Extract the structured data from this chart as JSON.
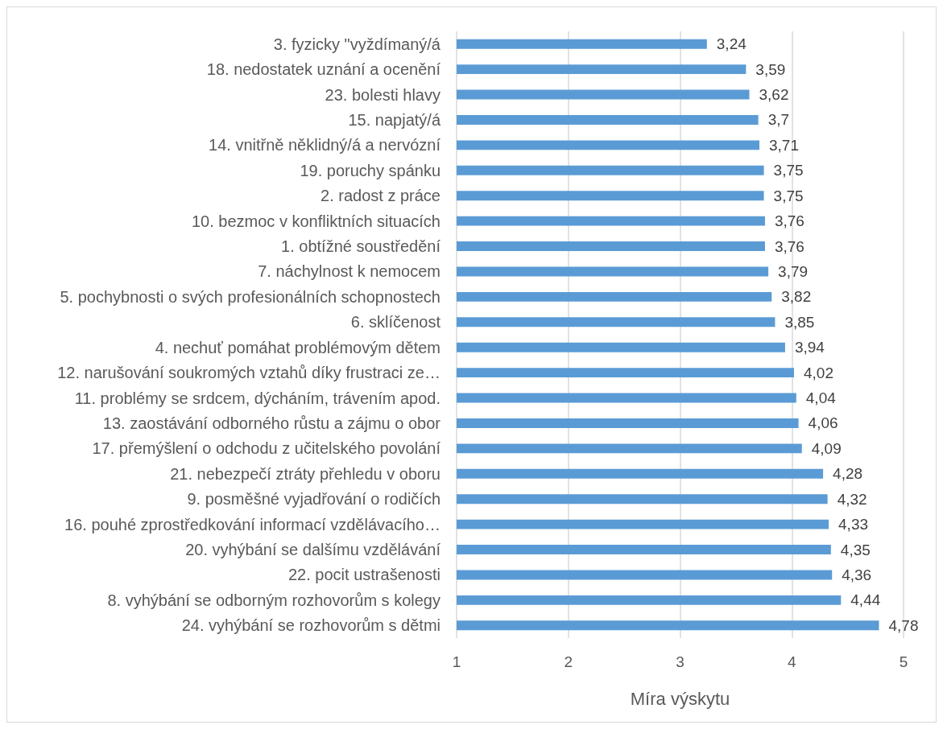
{
  "chart_data": {
    "type": "bar",
    "orientation": "horizontal",
    "categories": [
      "3. fyzicky \"vyždímaný/á",
      "18. nedostatek uznání a ocenění",
      "23. bolesti hlavy",
      "15. napjatý/á",
      "14. vnitřně něklidný/á a nervózní",
      "19. poruchy spánku",
      "2. radost z práce",
      "10. bezmoc v konfliktních situacích",
      "1. obtížné soustředění",
      "7. náchylnost k nemocem",
      "5. pochybnosti o svých profesionálních schopnostech",
      "6. sklíčenost",
      "4. nechuť pomáhat problémovým dětem",
      "12. narušování soukromých vztahů díky frustraci ze…",
      "11. problémy se srdcem, dýcháním, trávením apod.",
      "13. zaostávání odborného růstu a zájmu o obor",
      "17. přemýšlení o odchodu z učitelského povolání",
      "21. nebezpečí ztráty přehledu v oboru",
      "9. posměšné vyjadřování o rodičích",
      "16. pouhé zprostředkování informací vzdělávacího…",
      "20. vyhýbání se dalšímu vzdělávání",
      "22. pocit ustrašenosti",
      "8. vyhýbání se odborným rozhovorům s kolegy",
      "24. vyhýbání se rozhovorům s dětmi"
    ],
    "values": [
      3.24,
      3.59,
      3.62,
      3.7,
      3.71,
      3.75,
      3.75,
      3.76,
      3.76,
      3.79,
      3.82,
      3.85,
      3.94,
      4.02,
      4.04,
      4.06,
      4.09,
      4.28,
      4.32,
      4.33,
      4.35,
      4.36,
      4.44,
      4.78
    ],
    "value_labels": [
      "3,24",
      "3,59",
      "3,62",
      "3,7",
      "3,71",
      "3,75",
      "3,75",
      "3,76",
      "3,76",
      "3,79",
      "3,82",
      "3,85",
      "3,94",
      "4,02",
      "4,04",
      "4,06",
      "4,09",
      "4,28",
      "4,32",
      "4,33",
      "4,35",
      "4,36",
      "4,44",
      "4,78"
    ],
    "color": "#5b9bd5",
    "xlabel": "Míra výskytu",
    "xlim": [
      1,
      5
    ],
    "xticks": [
      1,
      2,
      3,
      4,
      5
    ],
    "grid": "x"
  }
}
